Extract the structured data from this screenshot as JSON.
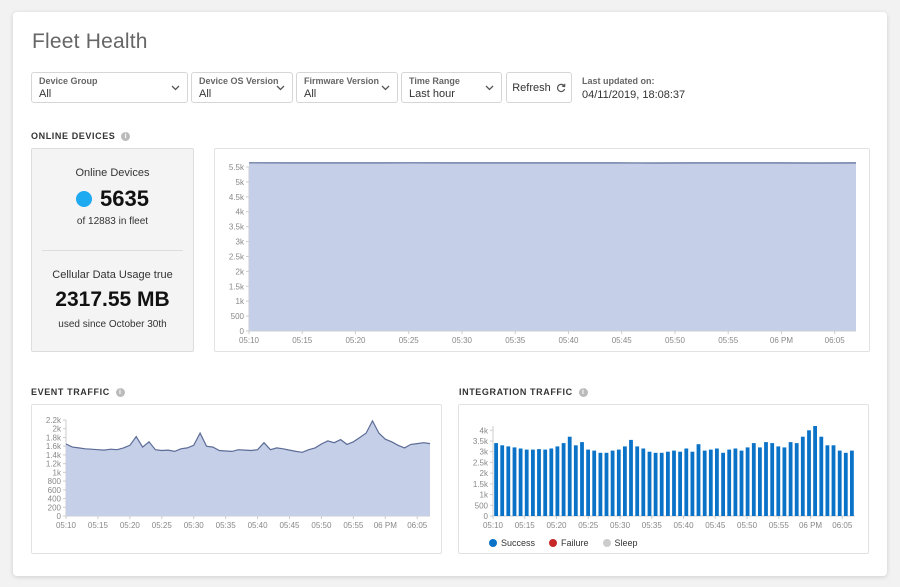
{
  "header": {
    "title": "Fleet Health"
  },
  "filters": [
    {
      "label": "Device Group",
      "value": "All"
    },
    {
      "label": "Device OS Version",
      "value": "All"
    },
    {
      "label": "Firmware Version",
      "value": "All"
    },
    {
      "label": "Time Range",
      "value": "Last hour"
    }
  ],
  "toolbar": {
    "refresh_label": "Refresh",
    "refresh_icon": "refresh-icon"
  },
  "updated": {
    "label": "Last updated on:",
    "value": "04/11/2019, 18:08:37"
  },
  "sections": {
    "online_devices": "ONLINE DEVICES",
    "event_traffic": "EVENT TRAFFIC",
    "integration_traffic": "INTEGRATION TRAFFIC"
  },
  "stats": {
    "online_label": "Online Devices",
    "online_count": "5635",
    "fleet_text": "of 12883 in fleet",
    "cellular_label": "Cellular Data Usage true",
    "cellular_value": "2317.55 MB",
    "cellular_since": "used since October 30th",
    "online_dot_color": "#1eaaf1"
  },
  "colors": {
    "area_fill": "#c5cfe8",
    "area_line": "#5c6c97",
    "bar": "#0a73c7",
    "failure": "#c62828",
    "sleep": "#cccccc"
  },
  "chart_data": [
    {
      "type": "area",
      "id": "online",
      "ylim": [
        0,
        5500
      ],
      "yticks": [
        0,
        500,
        1000,
        1500,
        2000,
        2500,
        3000,
        3500,
        4000,
        4500,
        5000,
        5500
      ],
      "ytick_labels": [
        "0",
        "500",
        "1k",
        "1.5k",
        "2k",
        "2.5k",
        "3k",
        "3.5k",
        "4k",
        "4.5k",
        "5k",
        "5.5k"
      ],
      "xtick_labels": [
        "05:10",
        "05:15",
        "05:20",
        "05:25",
        "05:30",
        "05:35",
        "05:40",
        "05:45",
        "05:50",
        "05:55",
        "06 PM",
        "06:05"
      ],
      "x_range": [
        0,
        57
      ],
      "values": [
        5640,
        5638,
        5636,
        5638,
        5640,
        5637,
        5636,
        5638,
        5639,
        5636,
        5635,
        5637,
        5638,
        5636,
        5635,
        5637
      ]
    },
    {
      "type": "area",
      "id": "event",
      "ylim": [
        0,
        2200
      ],
      "yticks": [
        0,
        200,
        400,
        600,
        800,
        1000,
        1200,
        1400,
        1600,
        1800,
        2000,
        2200
      ],
      "ytick_labels": [
        "0",
        "200",
        "400",
        "600",
        "800",
        "1k",
        "1.2k",
        "1.4k",
        "1.6k",
        "1.8k",
        "2k",
        "2.2k"
      ],
      "xtick_labels": [
        "05:10",
        "05:15",
        "05:20",
        "05:25",
        "05:30",
        "05:35",
        "05:40",
        "05:45",
        "05:50",
        "05:55",
        "06 PM",
        "06:05"
      ],
      "x_range": [
        0,
        57
      ],
      "values": [
        1650,
        1580,
        1560,
        1540,
        1530,
        1520,
        1510,
        1530,
        1520,
        1560,
        1620,
        1820,
        1580,
        1700,
        1520,
        1500,
        1510,
        1480,
        1540,
        1560,
        1620,
        1900,
        1600,
        1580,
        1500,
        1490,
        1480,
        1520,
        1510,
        1500,
        1520,
        1680,
        1520,
        1560,
        1540,
        1510,
        1480,
        1460,
        1520,
        1560,
        1650,
        1720,
        1680,
        1750,
        1640,
        1700,
        1800,
        1900,
        2180,
        1900,
        1760,
        1700,
        1620,
        1560,
        1640,
        1660,
        1680,
        1660
      ]
    },
    {
      "type": "bar",
      "id": "integration",
      "ylim": [
        0,
        4200
      ],
      "yticks": [
        0,
        500,
        1000,
        1500,
        2000,
        2500,
        3000,
        3500,
        4000
      ],
      "ytick_labels": [
        "0",
        "500",
        "1k",
        "1.5k",
        "2k",
        "2.5k",
        "3k",
        "3.5k",
        "4k"
      ],
      "xtick_labels": [
        "05:10",
        "05:15",
        "05:20",
        "05:25",
        "05:30",
        "05:35",
        "05:40",
        "05:45",
        "05:50",
        "05:55",
        "06 PM",
        "06:05"
      ],
      "x_range": [
        0,
        57
      ],
      "legend": [
        "Success",
        "Failure",
        "Sleep"
      ],
      "series": [
        {
          "name": "Success",
          "values": [
            3400,
            3300,
            3250,
            3200,
            3150,
            3100,
            3100,
            3120,
            3100,
            3150,
            3250,
            3400,
            3700,
            3300,
            3450,
            3100,
            3050,
            2950,
            2950,
            3050,
            3100,
            3250,
            3550,
            3250,
            3150,
            3000,
            2950,
            2950,
            3000,
            3050,
            3000,
            3150,
            3000,
            3350,
            3050,
            3100,
            3150,
            2950,
            3100,
            3150,
            3050,
            3200,
            3400,
            3200,
            3450,
            3400,
            3250,
            3200,
            3450,
            3400,
            3700,
            4000,
            4200,
            3700,
            3300,
            3300,
            3050,
            2950,
            3050
          ]
        },
        {
          "name": "Failure",
          "values": []
        },
        {
          "name": "Sleep",
          "values": []
        }
      ]
    }
  ]
}
